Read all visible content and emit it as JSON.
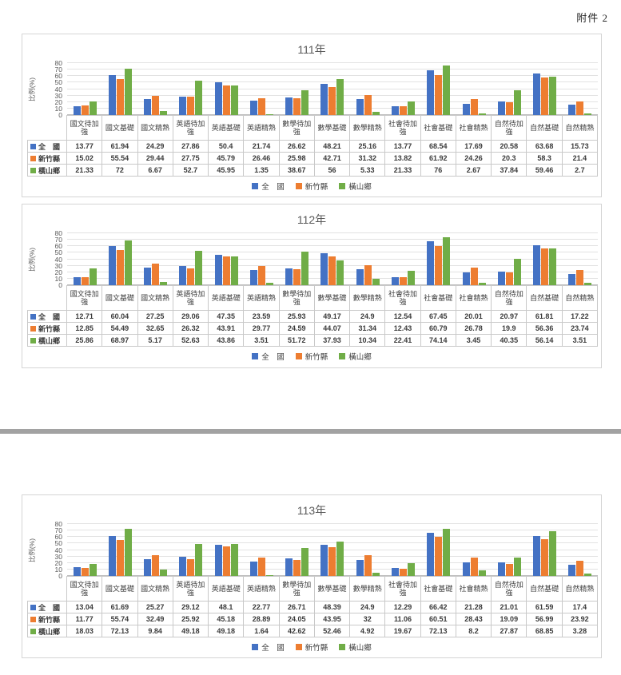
{
  "page": {
    "attachment_label": "附件 2"
  },
  "chart_data": [
    {
      "type": "bar",
      "title": "111年",
      "ylabel": "比例(%)",
      "ylim": [
        0,
        80
      ],
      "yticks": [
        0,
        10,
        20,
        30,
        40,
        50,
        60,
        70,
        80
      ],
      "grid": true,
      "legend_position": "bottom",
      "categories": [
        "國文待加強",
        "國文基礎",
        "國文精熟",
        "英語待加強",
        "英語基礎",
        "英語精熟",
        "數學待加強",
        "數學基礎",
        "數學精熟",
        "社會待加強",
        "社會基礎",
        "社會精熟",
        "自然待加強",
        "自然基礎",
        "自然精熟"
      ],
      "series": [
        {
          "name": "全　國",
          "color": "#4472C4",
          "values": [
            13.77,
            61.94,
            24.29,
            27.86,
            50.4,
            21.74,
            26.62,
            48.21,
            25.16,
            13.77,
            68.54,
            17.69,
            20.58,
            63.68,
            15.73
          ]
        },
        {
          "name": "新竹縣",
          "color": "#ED7D31",
          "values": [
            15.02,
            55.54,
            29.44,
            27.75,
            45.79,
            26.46,
            25.98,
            42.71,
            31.32,
            13.82,
            61.92,
            24.26,
            20.3,
            58.3,
            21.4
          ]
        },
        {
          "name": "橫山鄉",
          "color": "#70AD47",
          "values": [
            21.33,
            72,
            6.67,
            52.7,
            45.95,
            1.35,
            38.67,
            56,
            5.33,
            21.33,
            76,
            2.67,
            37.84,
            59.46,
            2.7
          ]
        }
      ]
    },
    {
      "type": "bar",
      "title": "112年",
      "ylabel": "比例(%)",
      "ylim": [
        0,
        80
      ],
      "yticks": [
        0,
        10,
        20,
        30,
        40,
        50,
        60,
        70,
        80
      ],
      "grid": true,
      "legend_position": "bottom",
      "categories": [
        "國文待加強",
        "國文基礎",
        "國文精熟",
        "英語待加強",
        "英語基礎",
        "英語精熟",
        "數學待加強",
        "數學基礎",
        "數學精熟",
        "社會待加強",
        "社會基礎",
        "社會精熟",
        "自然待加強",
        "自然基礎",
        "自然精熟"
      ],
      "series": [
        {
          "name": "全　國",
          "color": "#4472C4",
          "values": [
            12.71,
            60.04,
            27.25,
            29.06,
            47.35,
            23.59,
            25.93,
            49.17,
            24.9,
            12.54,
            67.45,
            20.01,
            20.97,
            61.81,
            17.22
          ]
        },
        {
          "name": "新竹縣",
          "color": "#ED7D31",
          "values": [
            12.85,
            54.49,
            32.65,
            26.32,
            43.91,
            29.77,
            24.59,
            44.07,
            31.34,
            12.43,
            60.79,
            26.78,
            19.9,
            56.36,
            23.74
          ]
        },
        {
          "name": "橫山鄉",
          "color": "#70AD47",
          "values": [
            25.86,
            68.97,
            5.17,
            52.63,
            43.86,
            3.51,
            51.72,
            37.93,
            10.34,
            22.41,
            74.14,
            3.45,
            40.35,
            56.14,
            3.51
          ]
        }
      ]
    },
    {
      "type": "bar",
      "title": "113年",
      "ylabel": "比例(%)",
      "ylim": [
        0,
        80
      ],
      "yticks": [
        0,
        10,
        20,
        30,
        40,
        50,
        60,
        70,
        80
      ],
      "grid": true,
      "legend_position": "bottom",
      "categories": [
        "國文待加強",
        "國文基礎",
        "國文精熟",
        "英語待加強",
        "英語基礎",
        "英語精熟",
        "數學待加強",
        "數學基礎",
        "數學精熟",
        "社會待加強",
        "社會基礎",
        "社會精熟",
        "自然待加強",
        "自然基礎",
        "自然精熟"
      ],
      "series": [
        {
          "name": "全　國",
          "color": "#4472C4",
          "values": [
            13.04,
            61.69,
            25.27,
            29.12,
            48.1,
            22.77,
            26.71,
            48.39,
            24.9,
            12.29,
            66.42,
            21.28,
            21.01,
            61.59,
            17.4
          ]
        },
        {
          "name": "新竹縣",
          "color": "#ED7D31",
          "values": [
            11.77,
            55.74,
            32.49,
            25.92,
            45.18,
            28.89,
            24.05,
            43.95,
            32,
            11.06,
            60.51,
            28.43,
            19.09,
            56.99,
            23.92
          ]
        },
        {
          "name": "橫山鄉",
          "color": "#70AD47",
          "values": [
            18.03,
            72.13,
            9.84,
            49.18,
            49.18,
            1.64,
            42.62,
            52.46,
            4.92,
            19.67,
            72.13,
            8.2,
            27.87,
            68.85,
            3.28
          ]
        }
      ]
    }
  ]
}
